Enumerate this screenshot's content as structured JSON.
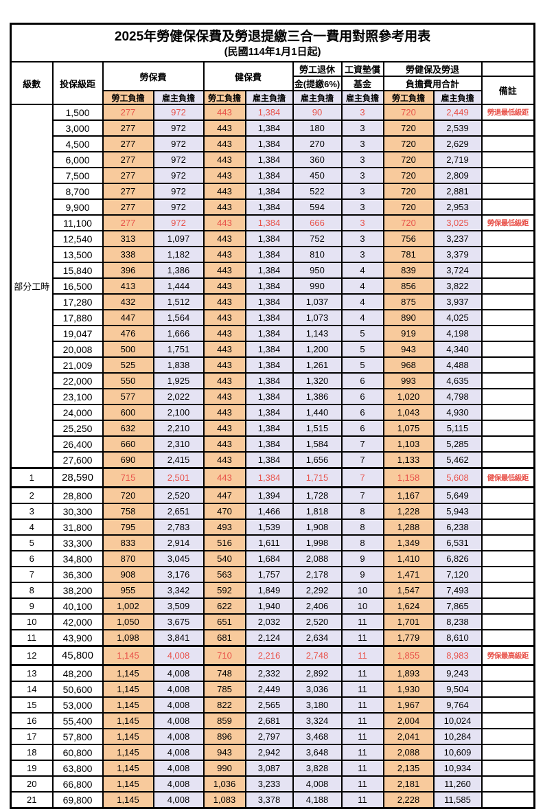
{
  "title": "2025年勞健保保費及勞退提繳三合一費用對照參考用表",
  "subtitle": "(民國114年1月1日起)",
  "header": {
    "level": "級數",
    "bracket": "投保級距",
    "labor_insurance": "勞保費",
    "health_insurance": "健保費",
    "pension_line1": "勞工退休",
    "pension_line2": "金(提繳6%)",
    "wage_fund_line1": "工資墊償",
    "wage_fund_line2": "基金",
    "total_line1": "勞健保及勞退",
    "total_line2": "負擔費用合計",
    "remark": "備註",
    "employee_label": "勞工負擔",
    "employer_label": "雇主負擔"
  },
  "part_time": {
    "label": "部分工時",
    "span": 23
  },
  "colors": {
    "employee_bg": "#F8CA9C",
    "employer_bg": "#E5E3F3",
    "highlight_red": "#E8524A",
    "border": "#000000"
  },
  "rows": [
    {
      "level": "",
      "group_start": true,
      "bracket": "1,500",
      "values": [
        "277",
        "972",
        "443",
        "1,384",
        "90",
        "3",
        "720",
        "2,449"
      ],
      "red": true,
      "emphasis": false,
      "remark": "勞退最低級距"
    },
    {
      "level": "",
      "bracket": "3,000",
      "values": [
        "277",
        "972",
        "443",
        "1,384",
        "180",
        "3",
        "720",
        "2,539"
      ],
      "red": false,
      "emphasis": false,
      "remark": ""
    },
    {
      "level": "",
      "bracket": "4,500",
      "values": [
        "277",
        "972",
        "443",
        "1,384",
        "270",
        "3",
        "720",
        "2,629"
      ],
      "red": false,
      "emphasis": false,
      "remark": ""
    },
    {
      "level": "",
      "bracket": "6,000",
      "values": [
        "277",
        "972",
        "443",
        "1,384",
        "360",
        "3",
        "720",
        "2,719"
      ],
      "red": false,
      "emphasis": false,
      "remark": ""
    },
    {
      "level": "",
      "bracket": "7,500",
      "values": [
        "277",
        "972",
        "443",
        "1,384",
        "450",
        "3",
        "720",
        "2,809"
      ],
      "red": false,
      "emphasis": false,
      "remark": ""
    },
    {
      "level": "",
      "bracket": "8,700",
      "values": [
        "277",
        "972",
        "443",
        "1,384",
        "522",
        "3",
        "720",
        "2,881"
      ],
      "red": false,
      "emphasis": false,
      "remark": ""
    },
    {
      "level": "",
      "bracket": "9,900",
      "values": [
        "277",
        "972",
        "443",
        "1,384",
        "594",
        "3",
        "720",
        "2,953"
      ],
      "red": false,
      "emphasis": false,
      "remark": ""
    },
    {
      "level": "",
      "bracket": "11,100",
      "values": [
        "277",
        "972",
        "443",
        "1,384",
        "666",
        "3",
        "720",
        "3,025"
      ],
      "red": true,
      "emphasis": false,
      "remark": "勞保最低級距"
    },
    {
      "level": "",
      "bracket": "12,540",
      "values": [
        "313",
        "1,097",
        "443",
        "1,384",
        "752",
        "3",
        "756",
        "3,237"
      ],
      "red": false,
      "emphasis": false,
      "remark": ""
    },
    {
      "level": "",
      "bracket": "13,500",
      "values": [
        "338",
        "1,182",
        "443",
        "1,384",
        "810",
        "3",
        "781",
        "3,379"
      ],
      "red": false,
      "emphasis": false,
      "remark": ""
    },
    {
      "level": "",
      "bracket": "15,840",
      "values": [
        "396",
        "1,386",
        "443",
        "1,384",
        "950",
        "4",
        "839",
        "3,724"
      ],
      "red": false,
      "emphasis": false,
      "remark": ""
    },
    {
      "level": "",
      "bracket": "16,500",
      "values": [
        "413",
        "1,444",
        "443",
        "1,384",
        "990",
        "4",
        "856",
        "3,822"
      ],
      "red": false,
      "emphasis": false,
      "remark": ""
    },
    {
      "level": "",
      "bracket": "17,280",
      "values": [
        "432",
        "1,512",
        "443",
        "1,384",
        "1,037",
        "4",
        "875",
        "3,937"
      ],
      "red": false,
      "emphasis": false,
      "remark": ""
    },
    {
      "level": "",
      "bracket": "17,880",
      "values": [
        "447",
        "1,564",
        "443",
        "1,384",
        "1,073",
        "4",
        "890",
        "4,025"
      ],
      "red": false,
      "emphasis": false,
      "remark": ""
    },
    {
      "level": "",
      "bracket": "19,047",
      "values": [
        "476",
        "1,666",
        "443",
        "1,384",
        "1,143",
        "5",
        "919",
        "4,198"
      ],
      "red": false,
      "emphasis": false,
      "remark": ""
    },
    {
      "level": "",
      "bracket": "20,008",
      "values": [
        "500",
        "1,751",
        "443",
        "1,384",
        "1,200",
        "5",
        "943",
        "4,340"
      ],
      "red": false,
      "emphasis": false,
      "remark": ""
    },
    {
      "level": "",
      "bracket": "21,009",
      "values": [
        "525",
        "1,838",
        "443",
        "1,384",
        "1,261",
        "5",
        "968",
        "4,488"
      ],
      "red": false,
      "emphasis": false,
      "remark": ""
    },
    {
      "level": "",
      "bracket": "22,000",
      "values": [
        "550",
        "1,925",
        "443",
        "1,384",
        "1,320",
        "6",
        "993",
        "4,635"
      ],
      "red": false,
      "emphasis": false,
      "remark": ""
    },
    {
      "level": "",
      "bracket": "23,100",
      "values": [
        "577",
        "2,022",
        "443",
        "1,384",
        "1,386",
        "6",
        "1,020",
        "4,798"
      ],
      "red": false,
      "emphasis": false,
      "remark": ""
    },
    {
      "level": "",
      "bracket": "24,000",
      "values": [
        "600",
        "2,100",
        "443",
        "1,384",
        "1,440",
        "6",
        "1,043",
        "4,930"
      ],
      "red": false,
      "emphasis": false,
      "remark": ""
    },
    {
      "level": "",
      "bracket": "25,250",
      "values": [
        "632",
        "2,210",
        "443",
        "1,384",
        "1,515",
        "6",
        "1,075",
        "5,115"
      ],
      "red": false,
      "emphasis": false,
      "remark": ""
    },
    {
      "level": "",
      "bracket": "26,400",
      "values": [
        "660",
        "2,310",
        "443",
        "1,384",
        "1,584",
        "7",
        "1,103",
        "5,285"
      ],
      "red": false,
      "emphasis": false,
      "remark": ""
    },
    {
      "level": "",
      "bracket": "27,600",
      "values": [
        "690",
        "2,415",
        "443",
        "1,384",
        "1,656",
        "7",
        "1,133",
        "5,462"
      ],
      "red": false,
      "emphasis": false,
      "remark": ""
    },
    {
      "level": "1",
      "bracket": "28,590",
      "values": [
        "715",
        "2,501",
        "443",
        "1,384",
        "1,715",
        "7",
        "1,158",
        "5,608"
      ],
      "red": true,
      "emphasis": true,
      "remark": "健保最低級距"
    },
    {
      "level": "2",
      "bracket": "28,800",
      "values": [
        "720",
        "2,520",
        "447",
        "1,394",
        "1,728",
        "7",
        "1,167",
        "5,649"
      ],
      "red": false,
      "emphasis": false,
      "remark": ""
    },
    {
      "level": "3",
      "bracket": "30,300",
      "values": [
        "758",
        "2,651",
        "470",
        "1,466",
        "1,818",
        "8",
        "1,228",
        "5,943"
      ],
      "red": false,
      "emphasis": false,
      "remark": ""
    },
    {
      "level": "4",
      "bracket": "31,800",
      "values": [
        "795",
        "2,783",
        "493",
        "1,539",
        "1,908",
        "8",
        "1,288",
        "6,238"
      ],
      "red": false,
      "emphasis": false,
      "remark": ""
    },
    {
      "level": "5",
      "bracket": "33,300",
      "values": [
        "833",
        "2,914",
        "516",
        "1,611",
        "1,998",
        "8",
        "1,349",
        "6,531"
      ],
      "red": false,
      "emphasis": false,
      "remark": ""
    },
    {
      "level": "6",
      "bracket": "34,800",
      "values": [
        "870",
        "3,045",
        "540",
        "1,684",
        "2,088",
        "9",
        "1,410",
        "6,826"
      ],
      "red": false,
      "emphasis": false,
      "remark": ""
    },
    {
      "level": "7",
      "bracket": "36,300",
      "values": [
        "908",
        "3,176",
        "563",
        "1,757",
        "2,178",
        "9",
        "1,471",
        "7,120"
      ],
      "red": false,
      "emphasis": false,
      "remark": ""
    },
    {
      "level": "8",
      "bracket": "38,200",
      "values": [
        "955",
        "3,342",
        "592",
        "1,849",
        "2,292",
        "10",
        "1,547",
        "7,493"
      ],
      "red": false,
      "emphasis": false,
      "remark": ""
    },
    {
      "level": "9",
      "bracket": "40,100",
      "values": [
        "1,002",
        "3,509",
        "622",
        "1,940",
        "2,406",
        "10",
        "1,624",
        "7,865"
      ],
      "red": false,
      "emphasis": false,
      "remark": ""
    },
    {
      "level": "10",
      "bracket": "42,000",
      "values": [
        "1,050",
        "3,675",
        "651",
        "2,032",
        "2,520",
        "11",
        "1,701",
        "8,238"
      ],
      "red": false,
      "emphasis": false,
      "remark": ""
    },
    {
      "level": "11",
      "bracket": "43,900",
      "values": [
        "1,098",
        "3,841",
        "681",
        "2,124",
        "2,634",
        "11",
        "1,779",
        "8,610"
      ],
      "red": false,
      "emphasis": false,
      "remark": ""
    },
    {
      "level": "12",
      "bracket": "45,800",
      "values": [
        "1,145",
        "4,008",
        "710",
        "2,216",
        "2,748",
        "11",
        "1,855",
        "8,983"
      ],
      "red": true,
      "emphasis": true,
      "remark": "勞保最高級距"
    },
    {
      "level": "13",
      "bracket": "48,200",
      "values": [
        "1,145",
        "4,008",
        "748",
        "2,332",
        "2,892",
        "11",
        "1,893",
        "9,243"
      ],
      "red": false,
      "emphasis": false,
      "remark": ""
    },
    {
      "level": "14",
      "bracket": "50,600",
      "values": [
        "1,145",
        "4,008",
        "785",
        "2,449",
        "3,036",
        "11",
        "1,930",
        "9,504"
      ],
      "red": false,
      "emphasis": false,
      "remark": ""
    },
    {
      "level": "15",
      "bracket": "53,000",
      "values": [
        "1,145",
        "4,008",
        "822",
        "2,565",
        "3,180",
        "11",
        "1,967",
        "9,764"
      ],
      "red": false,
      "emphasis": false,
      "remark": ""
    },
    {
      "level": "16",
      "bracket": "55,400",
      "values": [
        "1,145",
        "4,008",
        "859",
        "2,681",
        "3,324",
        "11",
        "2,004",
        "10,024"
      ],
      "red": false,
      "emphasis": false,
      "remark": ""
    },
    {
      "level": "17",
      "bracket": "57,800",
      "values": [
        "1,145",
        "4,008",
        "896",
        "2,797",
        "3,468",
        "11",
        "2,041",
        "10,284"
      ],
      "red": false,
      "emphasis": false,
      "remark": ""
    },
    {
      "level": "18",
      "bracket": "60,800",
      "values": [
        "1,145",
        "4,008",
        "943",
        "2,942",
        "3,648",
        "11",
        "2,088",
        "10,609"
      ],
      "red": false,
      "emphasis": false,
      "remark": ""
    },
    {
      "level": "19",
      "bracket": "63,800",
      "values": [
        "1,145",
        "4,008",
        "990",
        "3,087",
        "3,828",
        "11",
        "2,135",
        "10,934"
      ],
      "red": false,
      "emphasis": false,
      "remark": ""
    },
    {
      "level": "20",
      "bracket": "66,800",
      "values": [
        "1,145",
        "4,008",
        "1,036",
        "3,233",
        "4,008",
        "11",
        "2,181",
        "11,260"
      ],
      "red": false,
      "emphasis": false,
      "remark": ""
    },
    {
      "level": "21",
      "bracket": "69,800",
      "values": [
        "1,145",
        "4,008",
        "1,083",
        "3,378",
        "4,188",
        "11",
        "2,228",
        "11,585"
      ],
      "red": false,
      "emphasis": false,
      "remark": ""
    }
  ]
}
